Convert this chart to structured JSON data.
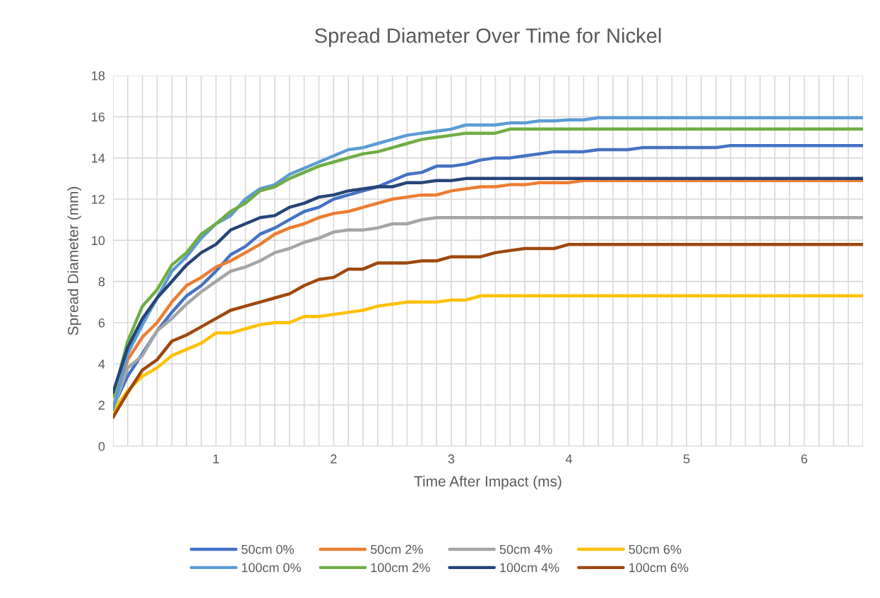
{
  "chart_data": {
    "type": "line",
    "title": "Spread Diameter Over Time for Nickel",
    "xlabel": "Time After Impact (ms)",
    "ylabel": "Spread Diameter (mm)",
    "categories": [
      null,
      null,
      null,
      null,
      null,
      null,
      null,
      "1",
      null,
      null,
      null,
      null,
      null,
      null,
      null,
      "2",
      null,
      null,
      null,
      null,
      null,
      null,
      null,
      "3",
      null,
      null,
      null,
      null,
      null,
      null,
      null,
      "4",
      null,
      null,
      null,
      null,
      null,
      null,
      null,
      "5",
      null,
      null,
      null,
      null,
      null,
      null,
      null,
      "6",
      null,
      null,
      null,
      null
    ],
    "ylim": [
      0,
      18
    ],
    "yticks": [
      0,
      2,
      4,
      6,
      8,
      10,
      12,
      14,
      16,
      18
    ],
    "grid": true,
    "legend": "bottom",
    "marker": "none",
    "line_style": "solid",
    "series": [
      {
        "name": "50cm 0%",
        "color": "#4472c4",
        "values": [
          1.9,
          3.4,
          4.5,
          5.6,
          6.5,
          7.3,
          7.8,
          8.5,
          9.3,
          9.7,
          10.3,
          10.6,
          11.0,
          11.4,
          11.6,
          12.0,
          12.2,
          12.4,
          12.6,
          12.9,
          13.2,
          13.3,
          13.6,
          13.6,
          13.7,
          13.9,
          14.0,
          14.0,
          14.1,
          14.2,
          14.3,
          14.3,
          14.3,
          14.4,
          14.4,
          14.4,
          14.5,
          14.5,
          14.5,
          14.5,
          14.5,
          14.5,
          14.6,
          14.6,
          14.6,
          14.6,
          14.6,
          14.6,
          14.6,
          14.6,
          14.6,
          14.6
        ]
      },
      {
        "name": "50cm 2%",
        "color": "#ed7d31",
        "values": [
          1.8,
          4.2,
          5.3,
          6.0,
          7.0,
          7.8,
          8.2,
          8.7,
          9.0,
          9.4,
          9.8,
          10.3,
          10.6,
          10.8,
          11.1,
          11.3,
          11.4,
          11.6,
          11.8,
          12.0,
          12.1,
          12.2,
          12.2,
          12.4,
          12.5,
          12.6,
          12.6,
          12.7,
          12.7,
          12.8,
          12.8,
          12.8,
          12.9,
          12.9,
          12.9,
          12.9,
          12.9,
          12.9,
          12.9,
          12.9,
          12.9,
          12.9,
          12.9,
          12.9,
          12.9,
          12.9,
          12.9,
          12.9,
          12.9,
          12.9,
          12.9,
          12.9
        ]
      },
      {
        "name": "50cm 4%",
        "color": "#a5a5a5",
        "values": [
          1.8,
          3.8,
          4.4,
          5.6,
          6.2,
          6.9,
          7.5,
          8.0,
          8.5,
          8.7,
          9.0,
          9.4,
          9.6,
          9.9,
          10.1,
          10.4,
          10.5,
          10.5,
          10.6,
          10.8,
          10.8,
          11.0,
          11.1,
          11.1,
          11.1,
          11.1,
          11.1,
          11.1,
          11.1,
          11.1,
          11.1,
          11.1,
          11.1,
          11.1,
          11.1,
          11.1,
          11.1,
          11.1,
          11.1,
          11.1,
          11.1,
          11.1,
          11.1,
          11.1,
          11.1,
          11.1,
          11.1,
          11.1,
          11.1,
          11.1,
          11.1,
          11.1
        ]
      },
      {
        "name": "50cm 6%",
        "color": "#ffc000",
        "values": [
          1.7,
          2.7,
          3.4,
          3.8,
          4.4,
          4.7,
          5.0,
          5.5,
          5.5,
          5.7,
          5.9,
          6.0,
          6.0,
          6.3,
          6.3,
          6.4,
          6.5,
          6.6,
          6.8,
          6.9,
          7.0,
          7.0,
          7.0,
          7.1,
          7.1,
          7.3,
          7.3,
          7.3,
          7.3,
          7.3,
          7.3,
          7.3,
          7.3,
          7.3,
          7.3,
          7.3,
          7.3,
          7.3,
          7.3,
          7.3,
          7.3,
          7.3,
          7.3,
          7.3,
          7.3,
          7.3,
          7.3,
          7.3,
          7.3,
          7.3,
          7.3,
          7.3
        ]
      },
      {
        "name": "100cm 0%",
        "color": "#5b9bd5",
        "values": [
          1.8,
          4.5,
          5.9,
          7.2,
          8.5,
          9.2,
          10.1,
          10.8,
          11.2,
          12.0,
          12.5,
          12.7,
          13.2,
          13.5,
          13.8,
          14.1,
          14.4,
          14.5,
          14.7,
          14.9,
          15.1,
          15.2,
          15.3,
          15.4,
          15.6,
          15.6,
          15.6,
          15.7,
          15.7,
          15.8,
          15.8,
          15.85,
          15.85,
          15.95,
          15.95,
          15.95,
          15.95,
          15.95,
          15.95,
          15.95,
          15.95,
          15.95,
          15.95,
          15.95,
          15.95,
          15.95,
          15.95,
          15.95,
          15.95,
          15.95,
          15.95,
          15.95
        ]
      },
      {
        "name": "100cm 2%",
        "color": "#70ad47",
        "values": [
          2.4,
          5.1,
          6.8,
          7.6,
          8.8,
          9.4,
          10.3,
          10.8,
          11.4,
          11.8,
          12.4,
          12.6,
          13.0,
          13.3,
          13.6,
          13.8,
          14.0,
          14.2,
          14.3,
          14.5,
          14.7,
          14.9,
          15.0,
          15.1,
          15.2,
          15.2,
          15.2,
          15.4,
          15.4,
          15.4,
          15.4,
          15.4,
          15.4,
          15.4,
          15.4,
          15.4,
          15.4,
          15.4,
          15.4,
          15.4,
          15.4,
          15.4,
          15.4,
          15.4,
          15.4,
          15.4,
          15.4,
          15.4,
          15.4,
          15.4,
          15.4,
          15.4
        ]
      },
      {
        "name": "100cm 4%",
        "color": "#264478",
        "values": [
          2.6,
          4.8,
          6.2,
          7.2,
          8.0,
          8.8,
          9.4,
          9.8,
          10.5,
          10.8,
          11.1,
          11.2,
          11.6,
          11.8,
          12.1,
          12.2,
          12.4,
          12.5,
          12.6,
          12.6,
          12.8,
          12.8,
          12.9,
          12.9,
          13.0,
          13.0,
          13.0,
          13.0,
          13.0,
          13.0,
          13.0,
          13.0,
          13.0,
          13.0,
          13.0,
          13.0,
          13.0,
          13.0,
          13.0,
          13.0,
          13.0,
          13.0,
          13.0,
          13.0,
          13.0,
          13.0,
          13.0,
          13.0,
          13.0,
          13.0,
          13.0,
          13.0
        ]
      },
      {
        "name": "100cm 6%",
        "color": "#9e480e",
        "values": [
          1.4,
          2.6,
          3.7,
          4.2,
          5.1,
          5.4,
          5.8,
          6.2,
          6.6,
          6.8,
          7.0,
          7.2,
          7.4,
          7.8,
          8.1,
          8.2,
          8.6,
          8.6,
          8.9,
          8.9,
          8.9,
          9.0,
          9.0,
          9.2,
          9.2,
          9.2,
          9.4,
          9.5,
          9.6,
          9.6,
          9.6,
          9.8,
          9.8,
          9.8,
          9.8,
          9.8,
          9.8,
          9.8,
          9.8,
          9.8,
          9.8,
          9.8,
          9.8,
          9.8,
          9.8,
          9.8,
          9.8,
          9.8,
          9.8,
          9.8,
          9.8,
          9.8
        ]
      }
    ]
  }
}
